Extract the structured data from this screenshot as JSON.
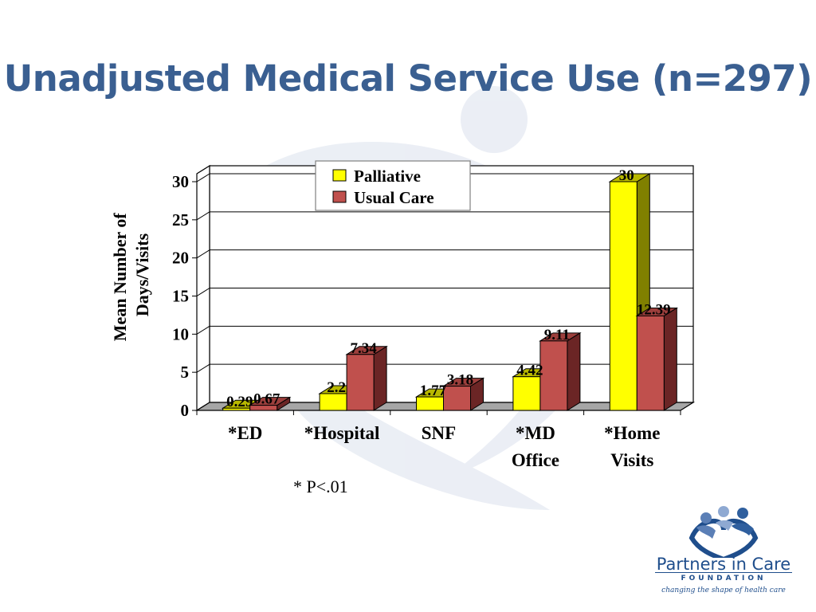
{
  "slide": {
    "title": "Unadjusted Medical Service Use (n=297)",
    "footnote": "* P<.01"
  },
  "logo": {
    "name": "Partners in Care",
    "subtitle": "FOUNDATION",
    "tagline": "changing the shape of health care"
  },
  "chart_data": {
    "type": "bar",
    "title": "",
    "xlabel": "",
    "ylabel": "Mean Number of Days/Visits",
    "ylim": [
      0,
      30
    ],
    "yticks": [
      "0",
      "5",
      "10",
      "15",
      "20",
      "25",
      "30"
    ],
    "categories": [
      "*ED",
      "*Hospital",
      "SNF",
      "*MD Office",
      "*Home Visits"
    ],
    "series": [
      {
        "name": "Palliative",
        "values": [
          0.29,
          2.2,
          1.77,
          4.42,
          30
        ],
        "color": "#ffff00"
      },
      {
        "name": "Usual Care",
        "values": [
          0.67,
          7.34,
          3.18,
          9.11,
          12.39
        ],
        "color": "#c0504d"
      }
    ],
    "data_labels": [
      [
        "0.29",
        "2.2",
        "1.77",
        "4.42",
        "30"
      ],
      [
        "0.67",
        "7.34",
        "3.18",
        "9.11",
        "12.39"
      ]
    ],
    "legend": "top-center",
    "grid": true,
    "three_d": true
  }
}
